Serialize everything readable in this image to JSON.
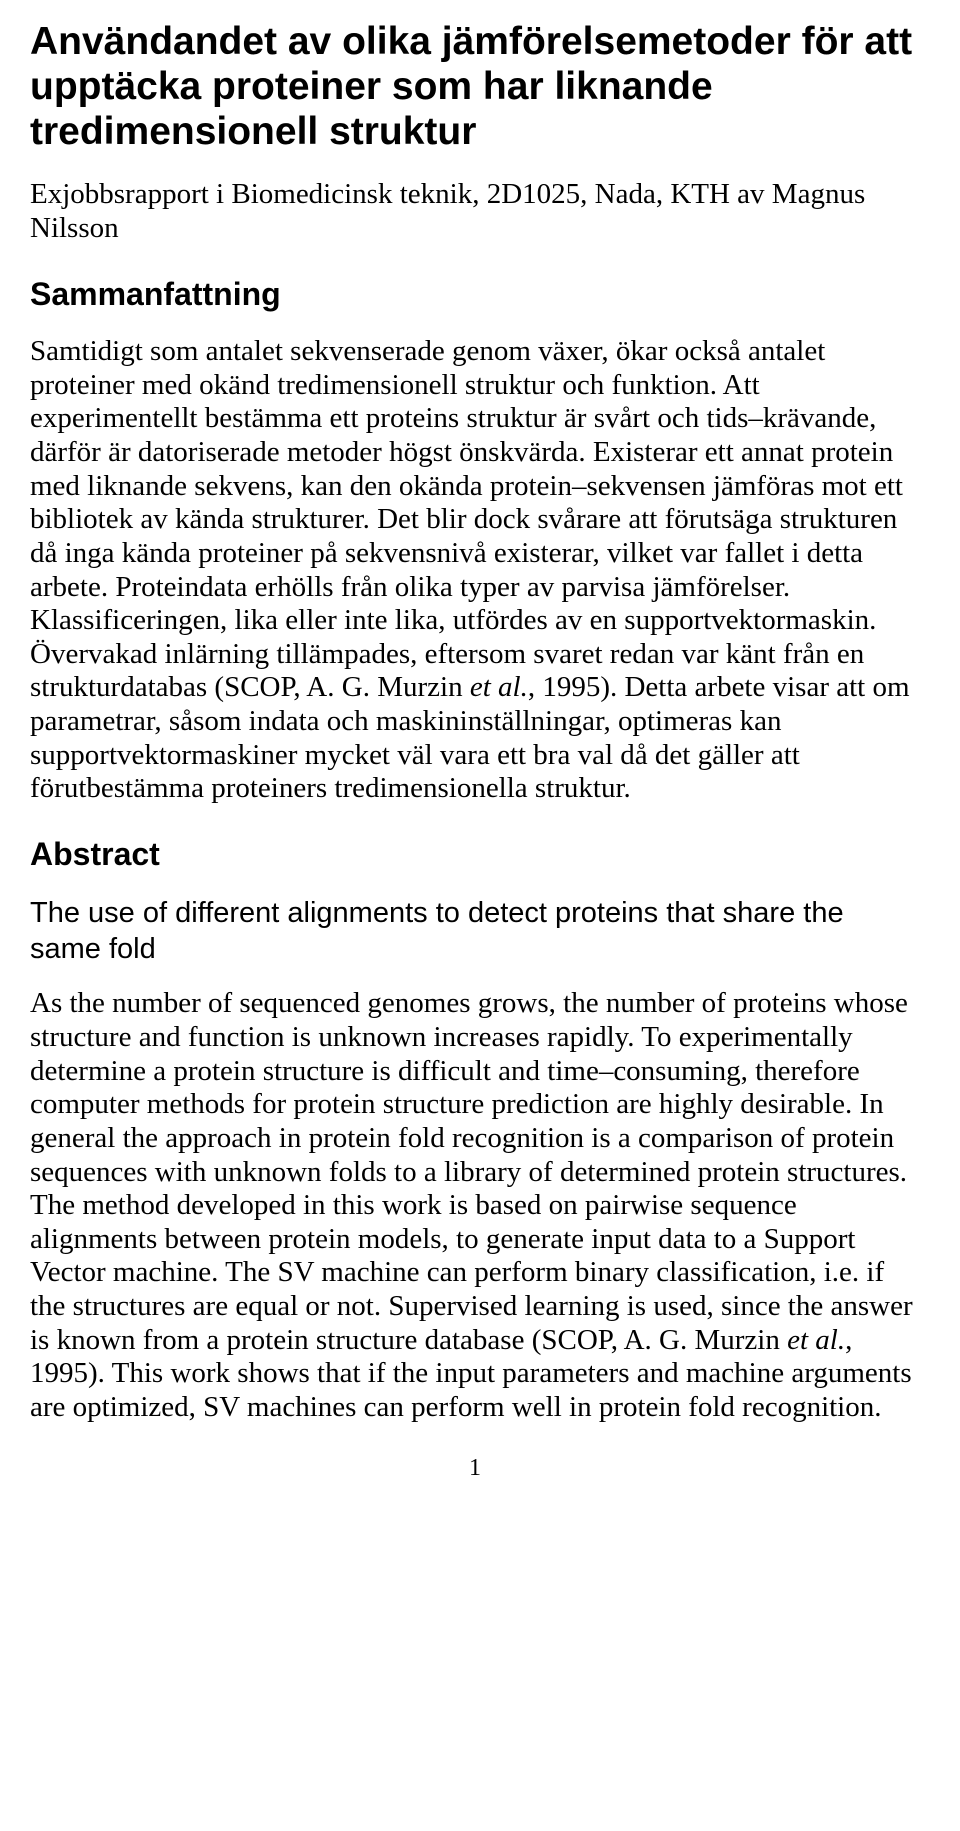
{
  "title": "Användandet av olika jämförelsemetoder för att upptäcka proteiner som har liknande tredimensionell struktur",
  "subtitle": "Exjobbsrapport i Biomedicinsk teknik, 2D1025, Nada, KTH av Magnus Nilsson",
  "section1_heading": "Sammanfattning",
  "section1_body_pre": "Samtidigt som antalet sekvenserade genom växer, ökar också antalet proteiner med okänd tredimensionell struktur och funktion. Att experimentellt bestämma ett proteins struktur är svårt och tids–krävande, därför är datoriserade metoder högst önskvärda. Existerar ett annat protein med liknande sekvens, kan den okända protein–sekvensen jämföras mot ett bibliotek av kända strukturer. Det blir dock svårare att förutsäga strukturen då inga kända proteiner på sekvensnivå existerar, vilket var fallet i detta arbete. Proteindata erhölls från olika typer av parvisa jämförelser. Klassificeringen, lika eller inte lika, utfördes av en supportvektormaskin. Övervakad inlärning tillämpades, eftersom svaret redan var känt från en strukturdatabas (SCOP, A. G. Murzin ",
  "section1_body_italic": "et al.",
  "section1_body_post": ", 1995). Detta arbete visar att om parametrar, såsom indata och maskininställningar, optimeras kan supportvektormaskiner mycket väl vara ett bra val då det gäller att förutbestämma proteiners tredimensionella struktur.",
  "section2_heading": "Abstract",
  "section2_subtitle": "The use of different alignments to detect proteins that share the same fold",
  "section2_body_pre": "As the number of sequenced genomes grows, the number of proteins whose structure and function is unknown increases rapidly. To experimentally determine a protein structure is difficult and time–consuming, therefore computer methods for protein structure prediction are highly desirable. In general the approach in protein fold recognition is a comparison of protein sequences with unknown folds to a library of determined protein structures. The method developed in this work is based on pairwise sequence alignments between protein models, to generate input data to a Support Vector machine. The SV machine can perform binary classification, i.e. if the structures are equal or not. Supervised learning is used, since the answer is known from a protein structure database (SCOP, A. G. Murzin ",
  "section2_body_italic": "et al.",
  "section2_body_post": ", 1995). This work shows that if the input parameters and machine arguments are optimized, SV machines can perform well in protein fold recognition.",
  "page_number": "1"
}
